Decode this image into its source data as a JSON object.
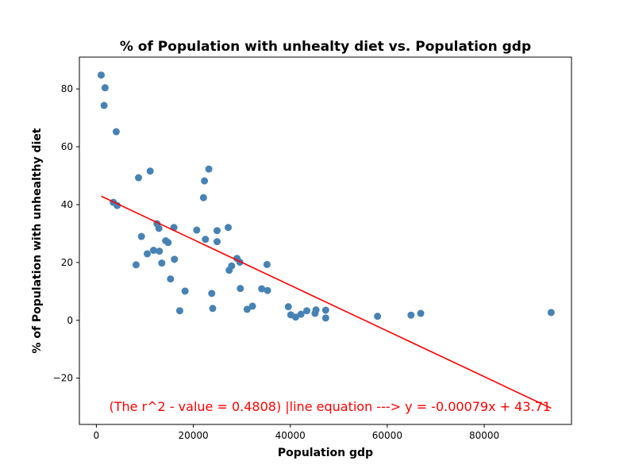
{
  "chart_data": {
    "type": "scatter",
    "title": "% of Population with unhealty diet vs.  Population gdp",
    "xlabel": "Population gdp",
    "ylabel": "% of Population with unhealthy diet",
    "xlim": [
      -3500,
      98000
    ],
    "ylim": [
      -36,
      91
    ],
    "xticks": [
      0,
      20000,
      40000,
      60000,
      80000
    ],
    "yticks": [
      -20,
      0,
      20,
      40,
      60,
      80
    ],
    "xtick_labels": [
      "0",
      "20000",
      "40000",
      "60000",
      "80000"
    ],
    "ytick_labels": [
      "−20",
      "0",
      "20",
      "40",
      "60",
      "80"
    ],
    "grid": false,
    "point_color": "#4682b4",
    "line_color": "#ff0000",
    "points": [
      {
        "x": 1000,
        "y": 84.8
      },
      {
        "x": 1800,
        "y": 80.4
      },
      {
        "x": 1600,
        "y": 74.3
      },
      {
        "x": 4100,
        "y": 65.2
      },
      {
        "x": 3500,
        "y": 40.8
      },
      {
        "x": 4300,
        "y": 39.7
      },
      {
        "x": 8700,
        "y": 49.3
      },
      {
        "x": 11100,
        "y": 51.6
      },
      {
        "x": 9300,
        "y": 29.0
      },
      {
        "x": 8200,
        "y": 19.2
      },
      {
        "x": 10500,
        "y": 23.0
      },
      {
        "x": 11800,
        "y": 24.2
      },
      {
        "x": 12500,
        "y": 33.4
      },
      {
        "x": 12900,
        "y": 31.8
      },
      {
        "x": 13000,
        "y": 23.9
      },
      {
        "x": 13500,
        "y": 19.8
      },
      {
        "x": 14300,
        "y": 27.5
      },
      {
        "x": 14800,
        "y": 26.9
      },
      {
        "x": 15300,
        "y": 14.3
      },
      {
        "x": 16000,
        "y": 32.1
      },
      {
        "x": 16100,
        "y": 21.1
      },
      {
        "x": 17200,
        "y": 3.3
      },
      {
        "x": 18300,
        "y": 10.1
      },
      {
        "x": 20700,
        "y": 31.2
      },
      {
        "x": 22100,
        "y": 42.4
      },
      {
        "x": 22300,
        "y": 48.2
      },
      {
        "x": 22500,
        "y": 28.0
      },
      {
        "x": 23200,
        "y": 52.3
      },
      {
        "x": 23800,
        "y": 9.3
      },
      {
        "x": 24000,
        "y": 4.1
      },
      {
        "x": 24900,
        "y": 31.0
      },
      {
        "x": 24900,
        "y": 27.2
      },
      {
        "x": 27200,
        "y": 32.1
      },
      {
        "x": 27400,
        "y": 17.3
      },
      {
        "x": 27900,
        "y": 18.8
      },
      {
        "x": 29000,
        "y": 21.4
      },
      {
        "x": 29600,
        "y": 20.1
      },
      {
        "x": 29700,
        "y": 11.0
      },
      {
        "x": 31100,
        "y": 3.8
      },
      {
        "x": 32200,
        "y": 4.9
      },
      {
        "x": 34100,
        "y": 10.9
      },
      {
        "x": 35200,
        "y": 19.3
      },
      {
        "x": 35300,
        "y": 10.3
      },
      {
        "x": 39600,
        "y": 4.7
      },
      {
        "x": 40100,
        "y": 1.9
      },
      {
        "x": 41100,
        "y": 1.1
      },
      {
        "x": 42200,
        "y": 2.1
      },
      {
        "x": 43400,
        "y": 3.3
      },
      {
        "x": 45100,
        "y": 2.4
      },
      {
        "x": 45300,
        "y": 3.6
      },
      {
        "x": 47300,
        "y": 3.5
      },
      {
        "x": 47300,
        "y": 0.8
      },
      {
        "x": 58000,
        "y": 1.4
      },
      {
        "x": 64900,
        "y": 1.8
      },
      {
        "x": 66900,
        "y": 2.4
      },
      {
        "x": 93800,
        "y": 2.7
      }
    ],
    "regression": {
      "slope": -0.00079,
      "intercept": 43.71,
      "x_start": 1000,
      "x_end": 93800
    },
    "annotation": {
      "text": "(The r^2 - value = 0.4808) |line equation ---> y = -0.00079x + 43.71",
      "x": 1000,
      "y": -30,
      "color": "#ff0000"
    }
  }
}
